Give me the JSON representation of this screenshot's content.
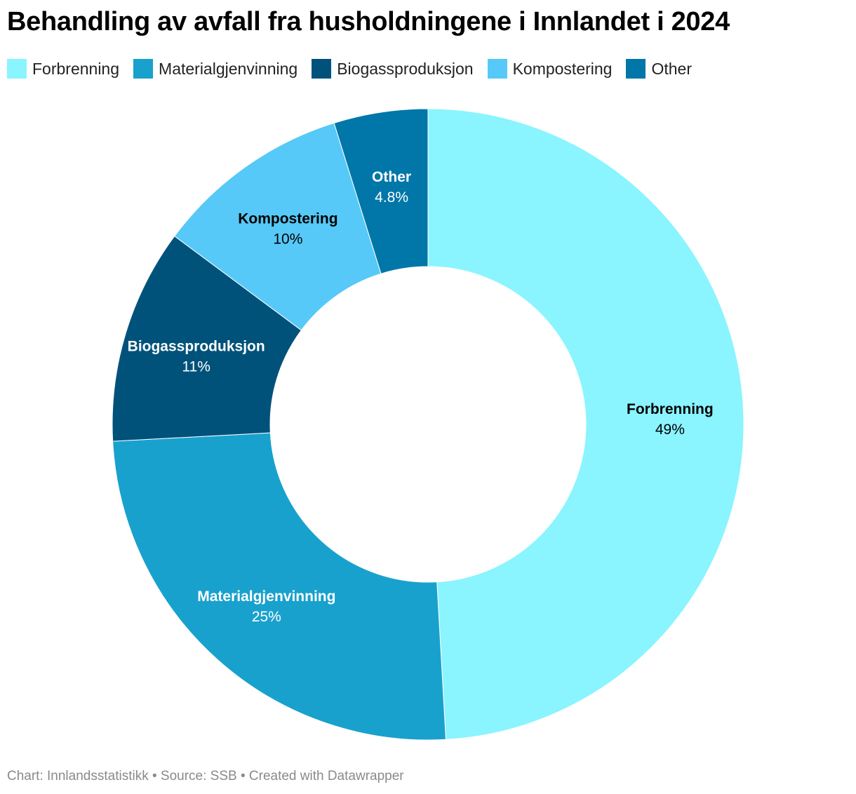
{
  "title": "Behandling av avfall fra husholdningene i Innlandet i 2024",
  "footer": "Chart: Innlandsstatistikk • Source: SSB • Created with Datawrapper",
  "chart_data": {
    "type": "pie",
    "title": "Behandling av avfall fra husholdningene i Innlandet i 2024",
    "legend_position": "top-left",
    "donut": true,
    "slices": [
      {
        "name": "Forbrenning",
        "value": 49,
        "label": "49%",
        "color": "#8af4ff",
        "text_color": "#000000"
      },
      {
        "name": "Materialgjenvinning",
        "value": 25,
        "label": "25%",
        "color": "#19a1cd",
        "text_color": "#ffffff"
      },
      {
        "name": "Biogassproduksjon",
        "value": 11,
        "label": "11%",
        "color": "#00527a",
        "text_color": "#ffffff"
      },
      {
        "name": "Kompostering",
        "value": 10,
        "label": "10%",
        "color": "#56c9f8",
        "text_color": "#000000"
      },
      {
        "name": "Other",
        "value": 4.8,
        "label": "4.8%",
        "color": "#0077a8",
        "text_color": "#ffffff"
      }
    ]
  }
}
